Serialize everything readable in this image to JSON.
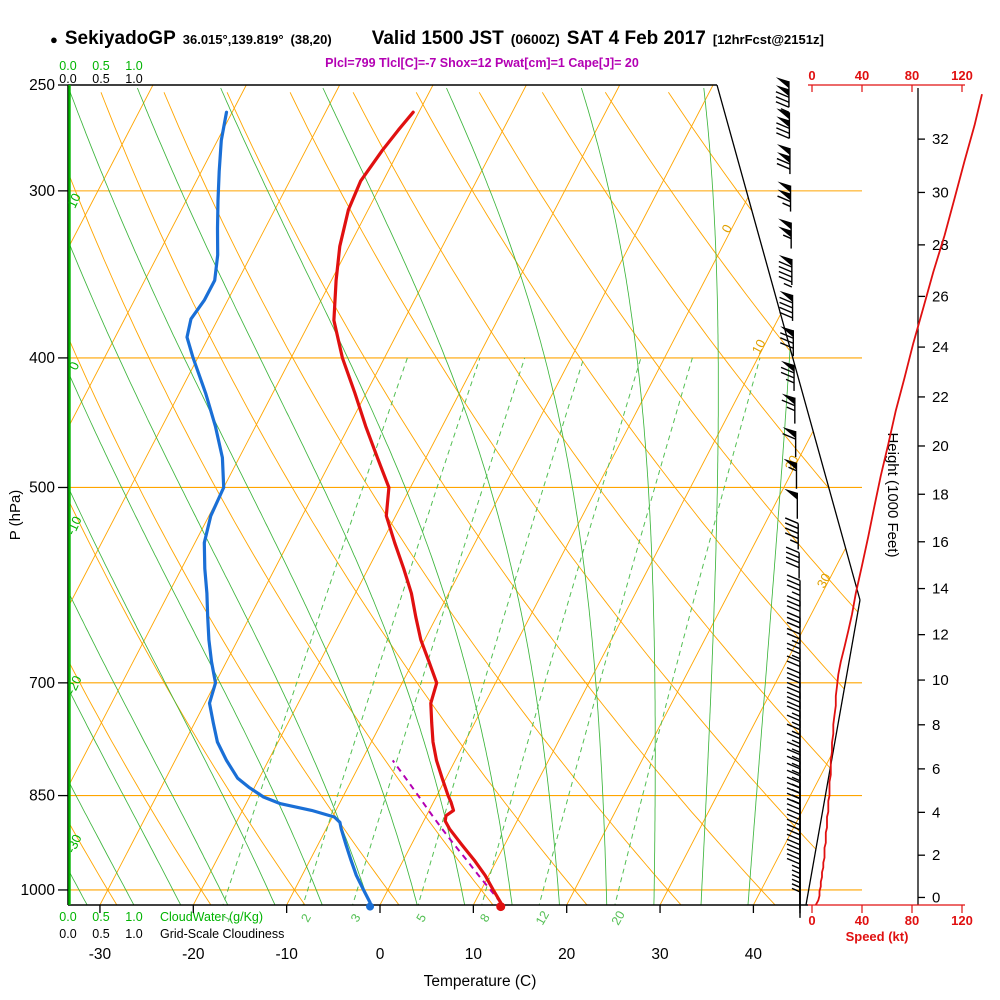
{
  "header": {
    "bullet": "●",
    "station": "SekiyadoGP",
    "coords": "36.015°,139.819°",
    "grid_point": "(38,20)",
    "valid": "Valid 1500 JST",
    "valid_utc": "(0600Z)",
    "valid_date": "SAT 4 Feb 2017",
    "forecast_tag": "[12hrFcst@2151z]",
    "params_line": "Plcl=799 Tlcl[C]=-7 Shox=12 Pwat[cm]=1 Cape[J]= 20"
  },
  "axis_labels": {
    "pressure": "P (hPa)",
    "temperature": "Temperature (C)",
    "height": "Height (1000 Feet)",
    "speed": "Speed (kt)",
    "cloudwater": "CloudWater (g/Kg)",
    "cloudiness": "Grid-Scale Cloudiness"
  },
  "chart_data": {
    "type": "line",
    "subtype": "skew-t-log-p-sounding",
    "pressure_axis_hpa": [
      250,
      300,
      400,
      500,
      700,
      850,
      1000
    ],
    "temperature_axis_c": [
      -30,
      -20,
      -10,
      0,
      10,
      20,
      30,
      40
    ],
    "height_axis_kft": [
      0,
      2,
      4,
      6,
      8,
      10,
      12,
      14,
      16,
      18,
      20,
      22,
      24,
      26,
      28,
      30,
      32
    ],
    "speed_axis_kt": [
      0,
      40,
      80,
      120
    ],
    "cloud_scale": [
      "0.0",
      "0.5",
      "1.0"
    ],
    "isotherm_labels_c": [
      0,
      10,
      20,
      30
    ],
    "dry_adiabat_labels_c": [
      10,
      0,
      -10,
      -20,
      -30
    ],
    "mixing_ratio_labels_gkg": [
      1,
      2,
      3,
      5,
      8,
      12,
      20
    ],
    "temperature_profile": [
      [
        1022,
        12.8
      ],
      [
        1000,
        11.3
      ],
      [
        975,
        9.6
      ],
      [
        950,
        7.6
      ],
      [
        925,
        5.4
      ],
      [
        900,
        3.2
      ],
      [
        888,
        2.3
      ],
      [
        880,
        2.1
      ],
      [
        872,
        2.6
      ],
      [
        860,
        1.9
      ],
      [
        850,
        1.2
      ],
      [
        825,
        -0.4
      ],
      [
        800,
        -2.0
      ],
      [
        775,
        -3.4
      ],
      [
        750,
        -4.6
      ],
      [
        725,
        -5.8
      ],
      [
        700,
        -6.3
      ],
      [
        675,
        -8.3
      ],
      [
        650,
        -10.4
      ],
      [
        625,
        -12.2
      ],
      [
        600,
        -14.0
      ],
      [
        575,
        -16.2
      ],
      [
        550,
        -18.6
      ],
      [
        525,
        -21.0
      ],
      [
        500,
        -22.3
      ],
      [
        475,
        -25.2
      ],
      [
        450,
        -28.2
      ],
      [
        425,
        -31.2
      ],
      [
        400,
        -34.5
      ],
      [
        375,
        -37.5
      ],
      [
        350,
        -39.5
      ],
      [
        330,
        -41.0
      ],
      [
        310,
        -42.1
      ],
      [
        295,
        -42.4
      ],
      [
        280,
        -41.8
      ],
      [
        270,
        -41.2
      ],
      [
        262,
        -40.6
      ]
    ],
    "dewpoint_profile": [
      [
        1022,
        -1.2
      ],
      [
        1000,
        -2.6
      ],
      [
        975,
        -4.2
      ],
      [
        950,
        -5.6
      ],
      [
        925,
        -7.0
      ],
      [
        900,
        -8.4
      ],
      [
        890,
        -8.9
      ],
      [
        882,
        -9.8
      ],
      [
        872,
        -12.6
      ],
      [
        862,
        -16.3
      ],
      [
        852,
        -18.5
      ],
      [
        838,
        -20.6
      ],
      [
        825,
        -22.3
      ],
      [
        800,
        -24.5
      ],
      [
        775,
        -26.5
      ],
      [
        750,
        -28.0
      ],
      [
        725,
        -29.5
      ],
      [
        700,
        -30.0
      ],
      [
        675,
        -31.6
      ],
      [
        650,
        -33.1
      ],
      [
        625,
        -34.5
      ],
      [
        600,
        -35.9
      ],
      [
        575,
        -37.5
      ],
      [
        550,
        -39.0
      ],
      [
        525,
        -39.8
      ],
      [
        500,
        -40.0
      ],
      [
        475,
        -41.8
      ],
      [
        450,
        -44.3
      ],
      [
        425,
        -47.2
      ],
      [
        400,
        -50.5
      ],
      [
        386,
        -52.3
      ],
      [
        374,
        -52.9
      ],
      [
        362,
        -52.5
      ],
      [
        350,
        -52.5
      ],
      [
        335,
        -53.6
      ],
      [
        320,
        -55.1
      ],
      [
        305,
        -56.6
      ],
      [
        290,
        -58.1
      ],
      [
        275,
        -59.6
      ],
      [
        262,
        -60.6
      ]
    ],
    "parcel_path": [
      [
        1022,
        12.8
      ],
      [
        1000,
        11.0
      ],
      [
        975,
        8.9
      ],
      [
        950,
        6.8
      ],
      [
        925,
        4.6
      ],
      [
        900,
        2.4
      ],
      [
        875,
        0.2
      ],
      [
        850,
        -2.0
      ],
      [
        825,
        -4.3
      ],
      [
        800,
        -6.7
      ]
    ],
    "wind_profile_kt": [
      [
        1026,
        3
      ],
      [
        1018,
        5
      ],
      [
        1010,
        6
      ],
      [
        1002,
        6
      ],
      [
        994,
        7
      ],
      [
        986,
        7
      ],
      [
        978,
        8
      ],
      [
        970,
        8
      ],
      [
        962,
        9
      ],
      [
        954,
        9
      ],
      [
        946,
        10
      ],
      [
        938,
        10
      ],
      [
        930,
        10
      ],
      [
        922,
        11
      ],
      [
        914,
        11
      ],
      [
        906,
        11
      ],
      [
        898,
        12
      ],
      [
        890,
        12
      ],
      [
        882,
        12
      ],
      [
        874,
        13
      ],
      [
        866,
        13
      ],
      [
        858,
        13
      ],
      [
        850,
        14
      ],
      [
        840,
        14
      ],
      [
        830,
        14
      ],
      [
        820,
        15
      ],
      [
        810,
        15
      ],
      [
        800,
        15
      ],
      [
        788,
        16
      ],
      [
        776,
        16
      ],
      [
        764,
        17
      ],
      [
        752,
        17
      ],
      [
        740,
        18
      ],
      [
        728,
        19
      ],
      [
        716,
        19
      ],
      [
        704,
        20
      ],
      [
        690,
        21
      ],
      [
        675,
        23
      ],
      [
        658,
        26
      ],
      [
        640,
        29
      ],
      [
        622,
        32
      ],
      [
        600,
        35
      ],
      [
        572,
        40
      ],
      [
        544,
        45
      ],
      [
        516,
        50
      ],
      [
        490,
        55
      ],
      [
        464,
        61
      ],
      [
        438,
        67
      ],
      [
        414,
        74
      ],
      [
        390,
        81
      ],
      [
        367,
        89
      ],
      [
        345,
        97
      ],
      [
        324,
        106
      ],
      [
        304,
        114
      ],
      [
        285,
        122
      ],
      [
        268,
        130
      ],
      [
        254,
        136
      ]
    ],
    "cloud_water_profile": [
      [
        1026,
        0.0
      ],
      [
        250,
        0.0
      ]
    ]
  },
  "colors": {
    "temperature": "#e01010",
    "dewpoint": "#1a6fd6",
    "grid": "#ffa500",
    "moist": "#3db53d",
    "mixing": "#53bf53",
    "cloud": "#00b400",
    "speed": "#e01010",
    "params": "#b300b3",
    "isotherm_label": "#e0a000",
    "axis": "#000000"
  }
}
